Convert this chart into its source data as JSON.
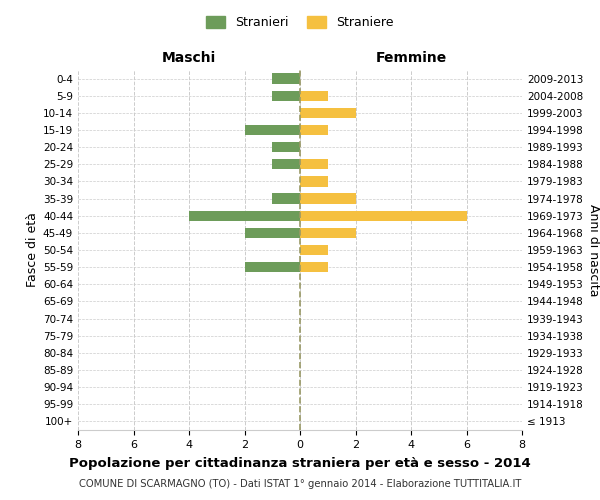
{
  "age_groups": [
    "100+",
    "95-99",
    "90-94",
    "85-89",
    "80-84",
    "75-79",
    "70-74",
    "65-69",
    "60-64",
    "55-59",
    "50-54",
    "45-49",
    "40-44",
    "35-39",
    "30-34",
    "25-29",
    "20-24",
    "15-19",
    "10-14",
    "5-9",
    "0-4"
  ],
  "birth_years": [
    "≤ 1913",
    "1914-1918",
    "1919-1923",
    "1924-1928",
    "1929-1933",
    "1934-1938",
    "1939-1943",
    "1944-1948",
    "1949-1953",
    "1954-1958",
    "1959-1963",
    "1964-1968",
    "1969-1973",
    "1974-1978",
    "1979-1983",
    "1984-1988",
    "1989-1993",
    "1994-1998",
    "1999-2003",
    "2004-2008",
    "2009-2013"
  ],
  "maschi": [
    0,
    0,
    0,
    0,
    0,
    0,
    0,
    0,
    0,
    2,
    0,
    2,
    4,
    1,
    0,
    1,
    1,
    2,
    0,
    1,
    1
  ],
  "femmine": [
    0,
    0,
    0,
    0,
    0,
    0,
    0,
    0,
    0,
    1,
    1,
    2,
    6,
    2,
    1,
    1,
    0,
    1,
    2,
    1,
    0
  ],
  "color_maschi": "#6d9c5a",
  "color_femmine": "#f5c040",
  "title": "Popolazione per cittadinanza straniera per età e sesso - 2014",
  "subtitle": "COMUNE DI SCARMAGNO (TO) - Dati ISTAT 1° gennaio 2014 - Elaborazione TUTTITALIA.IT",
  "ylabel_left": "Fasce di età",
  "ylabel_right": "Anni di nascita",
  "xlabel_maschi": "Maschi",
  "xlabel_femmine": "Femmine",
  "legend_maschi": "Stranieri",
  "legend_femmine": "Straniere",
  "xlim": 8,
  "background_color": "#ffffff",
  "grid_color": "#cccccc",
  "center_line_color": "#999966"
}
